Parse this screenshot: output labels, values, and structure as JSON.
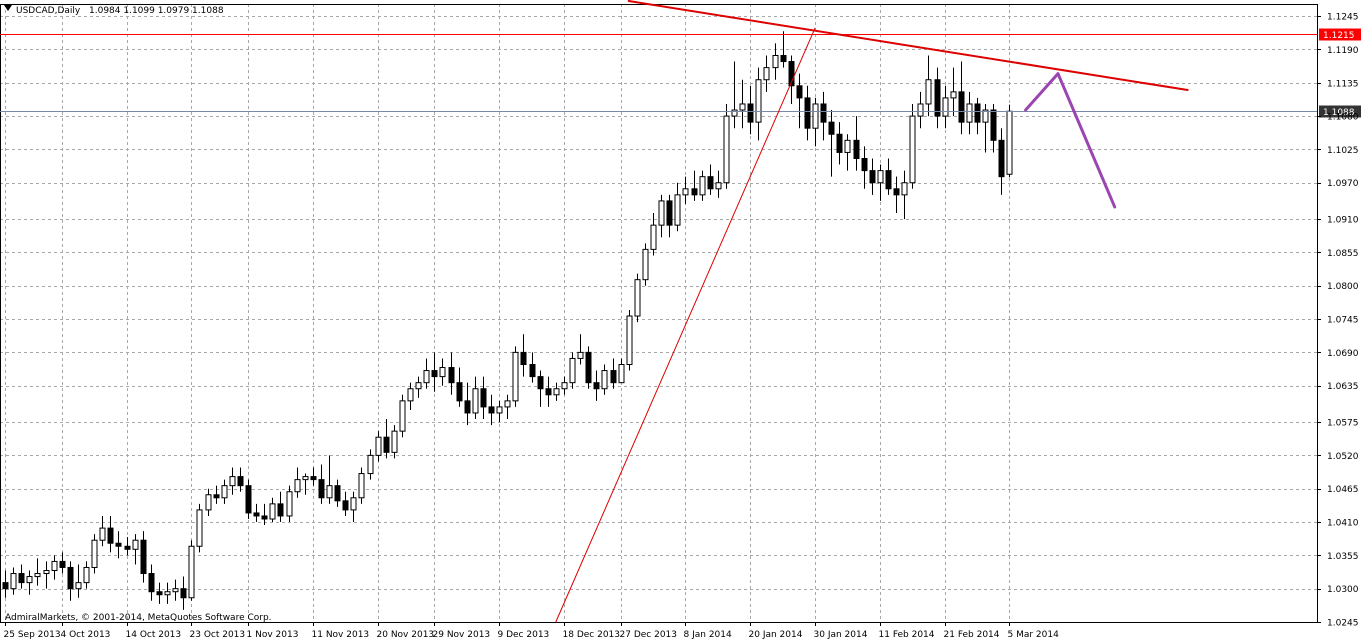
{
  "header": {
    "symbol": "USDCAD,Daily",
    "ohlc": "1.0984 1.1099 1.0979 1.1088"
  },
  "copyright": "AdmiralMarkets, © 2001-2014, MetaQuotes Software Corp.",
  "colors": {
    "background": "#ffffff",
    "grid": "#a8a8a8",
    "candle_border": "#000000",
    "bull_body": "#ffffff",
    "bear_body": "#000000",
    "resistance_line": "#ff0000",
    "bid_line": "#7788aa",
    "bid_label_bg": "#333333",
    "trendline": "#dd0000",
    "projection": "#9b45b0"
  },
  "chart_data": {
    "type": "candlestick",
    "symbol": "USDCAD",
    "timeframe": "Daily",
    "ylim": [
      1.0245,
      1.1265
    ],
    "y_ticks": [
      "1.1245",
      "1.1190",
      "1.1135",
      "1.1080",
      "1.1025",
      "1.0970",
      "1.0910",
      "1.0855",
      "1.0800",
      "1.0745",
      "1.0690",
      "1.0635",
      "1.0575",
      "1.0520",
      "1.0465",
      "1.0410",
      "1.0355",
      "1.0300",
      "1.0245"
    ],
    "x_ticks": [
      {
        "label": "25 Sep 2013",
        "bar": 0
      },
      {
        "label": "4 Oct 2013",
        "bar": 7
      },
      {
        "label": "14 Oct 2013",
        "bar": 15
      },
      {
        "label": "23 Oct 2013",
        "bar": 23
      },
      {
        "label": "1 Nov 2013",
        "bar": 30
      },
      {
        "label": "11 Nov 2013",
        "bar": 38
      },
      {
        "label": "20 Nov 2013",
        "bar": 46
      },
      {
        "label": "29 Nov 2013",
        "bar": 53
      },
      {
        "label": "9 Dec 2013",
        "bar": 61
      },
      {
        "label": "18 Dec 2013",
        "bar": 69
      },
      {
        "label": "27 Dec 2013",
        "bar": 76
      },
      {
        "label": "8 Jan 2014",
        "bar": 84
      },
      {
        "label": "20 Jan 2014",
        "bar": 92
      },
      {
        "label": "30 Jan 2014",
        "bar": 100
      },
      {
        "label": "11 Feb 2014",
        "bar": 108
      },
      {
        "label": "21 Feb 2014",
        "bar": 116
      },
      {
        "label": "5 Mar 2014",
        "bar": 124
      }
    ],
    "candles": [
      [
        1.031,
        1.033,
        1.0285,
        1.03
      ],
      [
        1.03,
        1.0335,
        1.029,
        1.0325
      ],
      [
        1.0325,
        1.034,
        1.03,
        1.031
      ],
      [
        1.031,
        1.033,
        1.029,
        1.032
      ],
      [
        1.032,
        1.035,
        1.0305,
        1.0325
      ],
      [
        1.0325,
        1.0345,
        1.03,
        1.033
      ],
      [
        1.033,
        1.0355,
        1.0315,
        1.0345
      ],
      [
        1.0345,
        1.036,
        1.0325,
        1.0335
      ],
      [
        1.0335,
        1.0345,
        1.028,
        1.03
      ],
      [
        1.03,
        1.034,
        1.0285,
        1.031
      ],
      [
        1.031,
        1.0345,
        1.03,
        1.0335
      ],
      [
        1.0335,
        1.039,
        1.0325,
        1.038
      ],
      [
        1.038,
        1.042,
        1.037,
        1.04
      ],
      [
        1.04,
        1.042,
        1.036,
        1.0375
      ],
      [
        1.0375,
        1.0395,
        1.035,
        1.037
      ],
      [
        1.037,
        1.0385,
        1.0355,
        1.0365
      ],
      [
        1.0365,
        1.039,
        1.034,
        1.038
      ],
      [
        1.038,
        1.0395,
        1.031,
        1.0325
      ],
      [
        1.0325,
        1.034,
        1.028,
        1.0295
      ],
      [
        1.0295,
        1.031,
        1.0275,
        1.029
      ],
      [
        1.029,
        1.031,
        1.0275,
        1.0295
      ],
      [
        1.0295,
        1.0315,
        1.028,
        1.03
      ],
      [
        1.03,
        1.032,
        1.0265,
        1.0285
      ],
      [
        1.0285,
        1.038,
        1.028,
        1.037
      ],
      [
        1.037,
        1.044,
        1.036,
        1.043
      ],
      [
        1.043,
        1.0465,
        1.042,
        1.0455
      ],
      [
        1.0455,
        1.047,
        1.044,
        1.045
      ],
      [
        1.045,
        1.048,
        1.044,
        1.047
      ],
      [
        1.047,
        1.05,
        1.0455,
        1.0485
      ],
      [
        1.0485,
        1.05,
        1.046,
        1.047
      ],
      [
        1.047,
        1.048,
        1.0415,
        1.0425
      ],
      [
        1.0425,
        1.044,
        1.041,
        1.042
      ],
      [
        1.042,
        1.044,
        1.0405,
        1.0415
      ],
      [
        1.0415,
        1.045,
        1.041,
        1.044
      ],
      [
        1.044,
        1.046,
        1.041,
        1.042
      ],
      [
        1.042,
        1.047,
        1.041,
        1.046
      ],
      [
        1.046,
        1.05,
        1.045,
        1.048
      ],
      [
        1.048,
        1.049,
        1.0455,
        1.0485
      ],
      [
        1.0485,
        1.05,
        1.047,
        1.048
      ],
      [
        1.048,
        1.0505,
        1.044,
        1.045
      ],
      [
        1.045,
        1.052,
        1.044,
        1.047
      ],
      [
        1.047,
        1.048,
        1.0435,
        1.0445
      ],
      [
        1.0445,
        1.046,
        1.042,
        1.043
      ],
      [
        1.043,
        1.046,
        1.041,
        1.045
      ],
      [
        1.045,
        1.05,
        1.044,
        1.049
      ],
      [
        1.049,
        1.053,
        1.048,
        1.052
      ],
      [
        1.052,
        1.056,
        1.051,
        1.055
      ],
      [
        1.055,
        1.058,
        1.0515,
        1.0525
      ],
      [
        1.0525,
        1.057,
        1.0515,
        1.056
      ],
      [
        1.056,
        1.062,
        1.055,
        1.061
      ],
      [
        1.061,
        1.064,
        1.0595,
        1.063
      ],
      [
        1.063,
        1.065,
        1.0615,
        1.064
      ],
      [
        1.064,
        1.068,
        1.063,
        1.066
      ],
      [
        1.066,
        1.069,
        1.0625,
        1.065
      ],
      [
        1.065,
        1.068,
        1.0635,
        1.0665
      ],
      [
        1.0665,
        1.069,
        1.062,
        1.064
      ],
      [
        1.064,
        1.0665,
        1.06,
        1.061
      ],
      [
        1.061,
        1.064,
        1.057,
        1.059
      ],
      [
        1.059,
        1.065,
        1.058,
        1.063
      ],
      [
        1.063,
        1.065,
        1.058,
        1.06
      ],
      [
        1.06,
        1.062,
        1.057,
        1.059
      ],
      [
        1.059,
        1.061,
        1.0575,
        1.06
      ],
      [
        1.06,
        1.062,
        1.058,
        1.061
      ],
      [
        1.061,
        1.07,
        1.06,
        1.069
      ],
      [
        1.069,
        1.072,
        1.065,
        1.067
      ],
      [
        1.067,
        1.069,
        1.064,
        1.065
      ],
      [
        1.065,
        1.066,
        1.06,
        1.063
      ],
      [
        1.063,
        1.065,
        1.06,
        1.062
      ],
      [
        1.062,
        1.064,
        1.061,
        1.063
      ],
      [
        1.063,
        1.065,
        1.062,
        1.064
      ],
      [
        1.064,
        1.069,
        1.063,
        1.068
      ],
      [
        1.068,
        1.072,
        1.067,
        1.069
      ],
      [
        1.069,
        1.07,
        1.063,
        1.064
      ],
      [
        1.064,
        1.066,
        1.061,
        1.063
      ],
      [
        1.063,
        1.067,
        1.062,
        1.066
      ],
      [
        1.066,
        1.068,
        1.063,
        1.064
      ],
      [
        1.064,
        1.068,
        1.064,
        1.067
      ],
      [
        1.067,
        1.076,
        1.066,
        1.075
      ],
      [
        1.075,
        1.082,
        1.074,
        1.081
      ],
      [
        1.081,
        1.087,
        1.08,
        1.086
      ],
      [
        1.086,
        1.092,
        1.085,
        1.09
      ],
      [
        1.09,
        1.095,
        1.088,
        1.094
      ],
      [
        1.094,
        1.095,
        1.088,
        1.09
      ],
      [
        1.09,
        1.097,
        1.089,
        1.095
      ],
      [
        1.095,
        1.098,
        1.0935,
        1.096
      ],
      [
        1.096,
        1.099,
        1.094,
        1.095
      ],
      [
        1.095,
        1.099,
        1.094,
        1.098
      ],
      [
        1.098,
        1.1,
        1.095,
        1.096
      ],
      [
        1.096,
        1.099,
        1.0945,
        1.097
      ],
      [
        1.097,
        1.11,
        1.096,
        1.108
      ],
      [
        1.108,
        1.117,
        1.106,
        1.109
      ],
      [
        1.109,
        1.114,
        1.106,
        1.11
      ],
      [
        1.11,
        1.113,
        1.105,
        1.107
      ],
      [
        1.107,
        1.116,
        1.104,
        1.114
      ],
      [
        1.114,
        1.118,
        1.112,
        1.116
      ],
      [
        1.116,
        1.12,
        1.114,
        1.118
      ],
      [
        1.118,
        1.122,
        1.116,
        1.117
      ],
      [
        1.117,
        1.118,
        1.11,
        1.113
      ],
      [
        1.113,
        1.115,
        1.106,
        1.111
      ],
      [
        1.111,
        1.113,
        1.104,
        1.106
      ],
      [
        1.106,
        1.111,
        1.103,
        1.11
      ],
      [
        1.11,
        1.112,
        1.104,
        1.107
      ],
      [
        1.107,
        1.109,
        1.098,
        1.105
      ],
      [
        1.105,
        1.107,
        1.1,
        1.102
      ],
      [
        1.102,
        1.105,
        1.099,
        1.104
      ],
      [
        1.104,
        1.108,
        1.099,
        1.101
      ],
      [
        1.101,
        1.103,
        1.096,
        1.099
      ],
      [
        1.099,
        1.101,
        1.095,
        1.097
      ],
      [
        1.097,
        1.1,
        1.094,
        1.099
      ],
      [
        1.099,
        1.101,
        1.095,
        1.096
      ],
      [
        1.096,
        1.098,
        1.092,
        1.095
      ],
      [
        1.095,
        1.099,
        1.091,
        1.097
      ],
      [
        1.097,
        1.11,
        1.096,
        1.108
      ],
      [
        1.108,
        1.112,
        1.106,
        1.11
      ],
      [
        1.11,
        1.118,
        1.108,
        1.114
      ],
      [
        1.114,
        1.116,
        1.106,
        1.108
      ],
      [
        1.108,
        1.113,
        1.106,
        1.111
      ],
      [
        1.111,
        1.116,
        1.108,
        1.112
      ],
      [
        1.112,
        1.117,
        1.105,
        1.107
      ],
      [
        1.107,
        1.112,
        1.105,
        1.11
      ],
      [
        1.11,
        1.111,
        1.105,
        1.107
      ],
      [
        1.107,
        1.11,
        1.102,
        1.109
      ],
      [
        1.109,
        1.11,
        1.102,
        1.104
      ],
      [
        1.104,
        1.106,
        1.095,
        1.098
      ],
      [
        1.0984,
        1.1099,
        1.0979,
        1.1088
      ]
    ],
    "levels": [
      {
        "name": "resistance",
        "value": 1.1215,
        "label": "1.1215"
      },
      {
        "name": "bid",
        "value": 1.1088,
        "label": "1.1088"
      }
    ],
    "lines": [
      {
        "name": "ascending-trendline",
        "from": {
          "bar": 68,
          "price": 1.0245
        },
        "to": {
          "bar": 100,
          "price": 1.1225
        }
      },
      {
        "name": "descending-trendline",
        "from": {
          "bar": 77,
          "price": 1.127
        },
        "to": {
          "bar": 146,
          "price": 1.1123
        }
      },
      {
        "name": "projection-up",
        "from": {
          "bar": 126,
          "price": 1.109
        },
        "to": {
          "bar": 130,
          "price": 1.115
        }
      },
      {
        "name": "projection-down",
        "from": {
          "bar": 130,
          "price": 1.115
        },
        "to": {
          "bar": 137,
          "price": 1.093
        }
      }
    ]
  }
}
